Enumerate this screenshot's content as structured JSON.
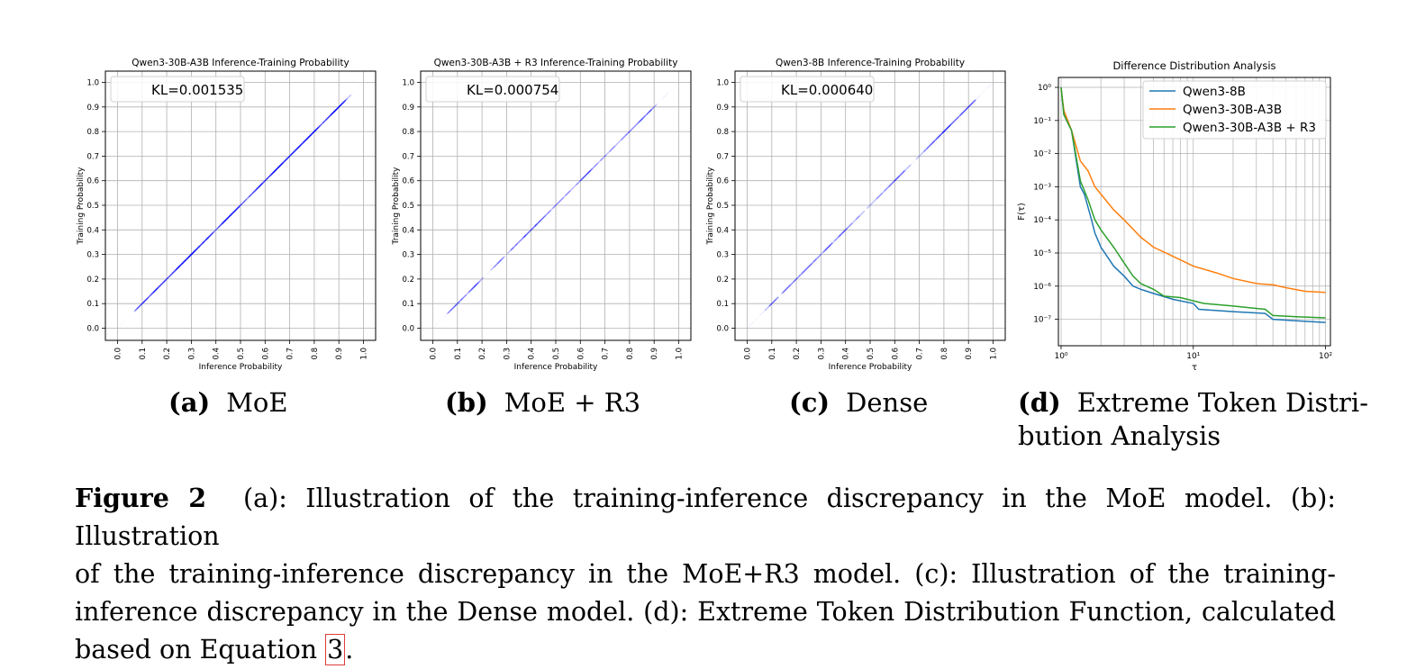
{
  "panels": [
    {
      "title": "Qwen3-30B-A3B Inference-Training Probability",
      "kl": "KL=0.001535",
      "spread": 0.05,
      "halo": 0.11,
      "noise": true
    },
    {
      "title": "Qwen3-30B-A3B + R3 Inference-Training Probability",
      "kl": "KL=0.000754",
      "spread": 0.04,
      "halo": 0.08,
      "noise": false
    },
    {
      "title": "Qwen3-8B Inference-Training Probability",
      "kl": "KL=0.000640",
      "spread": 0.036,
      "halo": 0.07,
      "noise": false
    }
  ],
  "scatter_axes": {
    "xlabel": "Inference Probability",
    "ylabel": "Training Probability",
    "ticks": [
      "0.0",
      "0.1",
      "0.2",
      "0.3",
      "0.4",
      "0.5",
      "0.6",
      "0.7",
      "0.8",
      "0.9",
      "1.0"
    ]
  },
  "subcaptions": {
    "a": {
      "tag": "(a)",
      "text": "MoE"
    },
    "b": {
      "tag": "(b)",
      "text": "MoE + R3"
    },
    "c": {
      "tag": "(c)",
      "text": "Dense"
    },
    "d": {
      "tag": "(d)",
      "text": "Extreme Token Distri-",
      "text2": "bution Analysis"
    }
  },
  "caption": {
    "label": "Figure 2",
    "line1": "(a): Illustration of the training-inference discrepancy in the MoE model. (b): Illustration",
    "line2": "of the training-inference discrepancy in the MoE+R3 model. (c): Illustration of the training-",
    "line3": "inference discrepancy in the Dense model. (d): Extreme Token Distribution Function, calculated",
    "line4a": "based on Equation ",
    "ref": "3",
    "line4b": "."
  },
  "chart_data": [
    {
      "type": "scatter",
      "title": "Qwen3-30B-A3B Inference-Training Probability",
      "xlabel": "Inference Probability",
      "ylabel": "Training Probability",
      "xlim": [
        0,
        1
      ],
      "ylim": [
        0,
        1
      ],
      "grid": true,
      "annotation": "KL=0.001535"
    },
    {
      "type": "scatter",
      "title": "Qwen3-30B-A3B + R3 Inference-Training Probability",
      "xlabel": "Inference Probability",
      "ylabel": "Training Probability",
      "xlim": [
        0,
        1
      ],
      "ylim": [
        0,
        1
      ],
      "grid": true,
      "annotation": "KL=0.000754"
    },
    {
      "type": "scatter",
      "title": "Qwen3-8B Inference-Training Probability",
      "xlabel": "Inference Probability",
      "ylabel": "Training Probability",
      "xlim": [
        0,
        1
      ],
      "ylim": [
        0,
        1
      ],
      "grid": true,
      "annotation": "KL=0.000640"
    },
    {
      "type": "line",
      "title": "Difference Distribution Analysis",
      "xlabel": "τ",
      "ylabel": "F(τ)",
      "xscale": "log",
      "yscale": "log",
      "xlim": [
        1,
        100
      ],
      "ylim": [
        1e-08,
        2
      ],
      "xticks": [
        "10^0",
        "10^1",
        "10^2"
      ],
      "yticks": [
        "10^0",
        "10^-1",
        "10^-2",
        "10^-3",
        "10^-4",
        "10^-5",
        "10^-6",
        "10^-7"
      ],
      "grid": true,
      "legend": "top-right",
      "series": [
        {
          "name": "Qwen3-8B",
          "color": "#1f77b4",
          "points": [
            [
              1,
              1
            ],
            [
              1.05,
              0.15
            ],
            [
              1.2,
              0.05
            ],
            [
              1.4,
              0.001
            ],
            [
              1.5,
              0.0006
            ],
            [
              1.7,
              0.0001
            ],
            [
              1.8,
              4e-05
            ],
            [
              2,
              1.5e-05
            ],
            [
              2.5,
              4e-06
            ],
            [
              3,
              2e-06
            ],
            [
              3.5,
              1e-06
            ],
            [
              4,
              8e-07
            ],
            [
              5,
              6e-07
            ],
            [
              7,
              4e-07
            ],
            [
              10,
              3e-07
            ],
            [
              11,
              2e-07
            ],
            [
              20,
              1.7e-07
            ],
            [
              35,
              1.5e-07
            ],
            [
              40,
              1e-07
            ],
            [
              60,
              9e-08
            ],
            [
              100,
              8e-08
            ]
          ]
        },
        {
          "name": "Qwen3-30B-A3B",
          "color": "#ff7f0e",
          "points": [
            [
              1,
              0.9
            ],
            [
              1.05,
              0.2
            ],
            [
              1.2,
              0.05
            ],
            [
              1.4,
              0.006
            ],
            [
              1.6,
              0.003
            ],
            [
              1.8,
              0.001
            ],
            [
              2,
              0.0006
            ],
            [
              2.5,
              0.0002
            ],
            [
              3,
              0.0001
            ],
            [
              4,
              3e-05
            ],
            [
              5,
              1.5e-05
            ],
            [
              7,
              8e-06
            ],
            [
              10,
              4e-06
            ],
            [
              15,
              2.5e-06
            ],
            [
              20,
              1.7e-06
            ],
            [
              30,
              1.2e-06
            ],
            [
              40,
              1.1e-06
            ],
            [
              50,
              9e-07
            ],
            [
              70,
              7e-07
            ],
            [
              100,
              6.5e-07
            ]
          ]
        },
        {
          "name": "Qwen3-30B-A3B + R3",
          "color": "#2ca02c",
          "points": [
            [
              1,
              1
            ],
            [
              1.05,
              0.15
            ],
            [
              1.2,
              0.05
            ],
            [
              1.4,
              0.0015
            ],
            [
              1.6,
              0.0004
            ],
            [
              1.8,
              0.0001
            ],
            [
              2,
              5e-05
            ],
            [
              2.5,
              1.5e-05
            ],
            [
              3,
              5e-06
            ],
            [
              3.5,
              2e-06
            ],
            [
              4,
              1.2e-06
            ],
            [
              5,
              8e-07
            ],
            [
              6,
              5e-07
            ],
            [
              8,
              4.5e-07
            ],
            [
              12,
              3e-07
            ],
            [
              20,
              2.5e-07
            ],
            [
              35,
              2e-07
            ],
            [
              40,
              1.3e-07
            ],
            [
              60,
              1.2e-07
            ],
            [
              100,
              1.1e-07
            ]
          ]
        }
      ]
    }
  ]
}
